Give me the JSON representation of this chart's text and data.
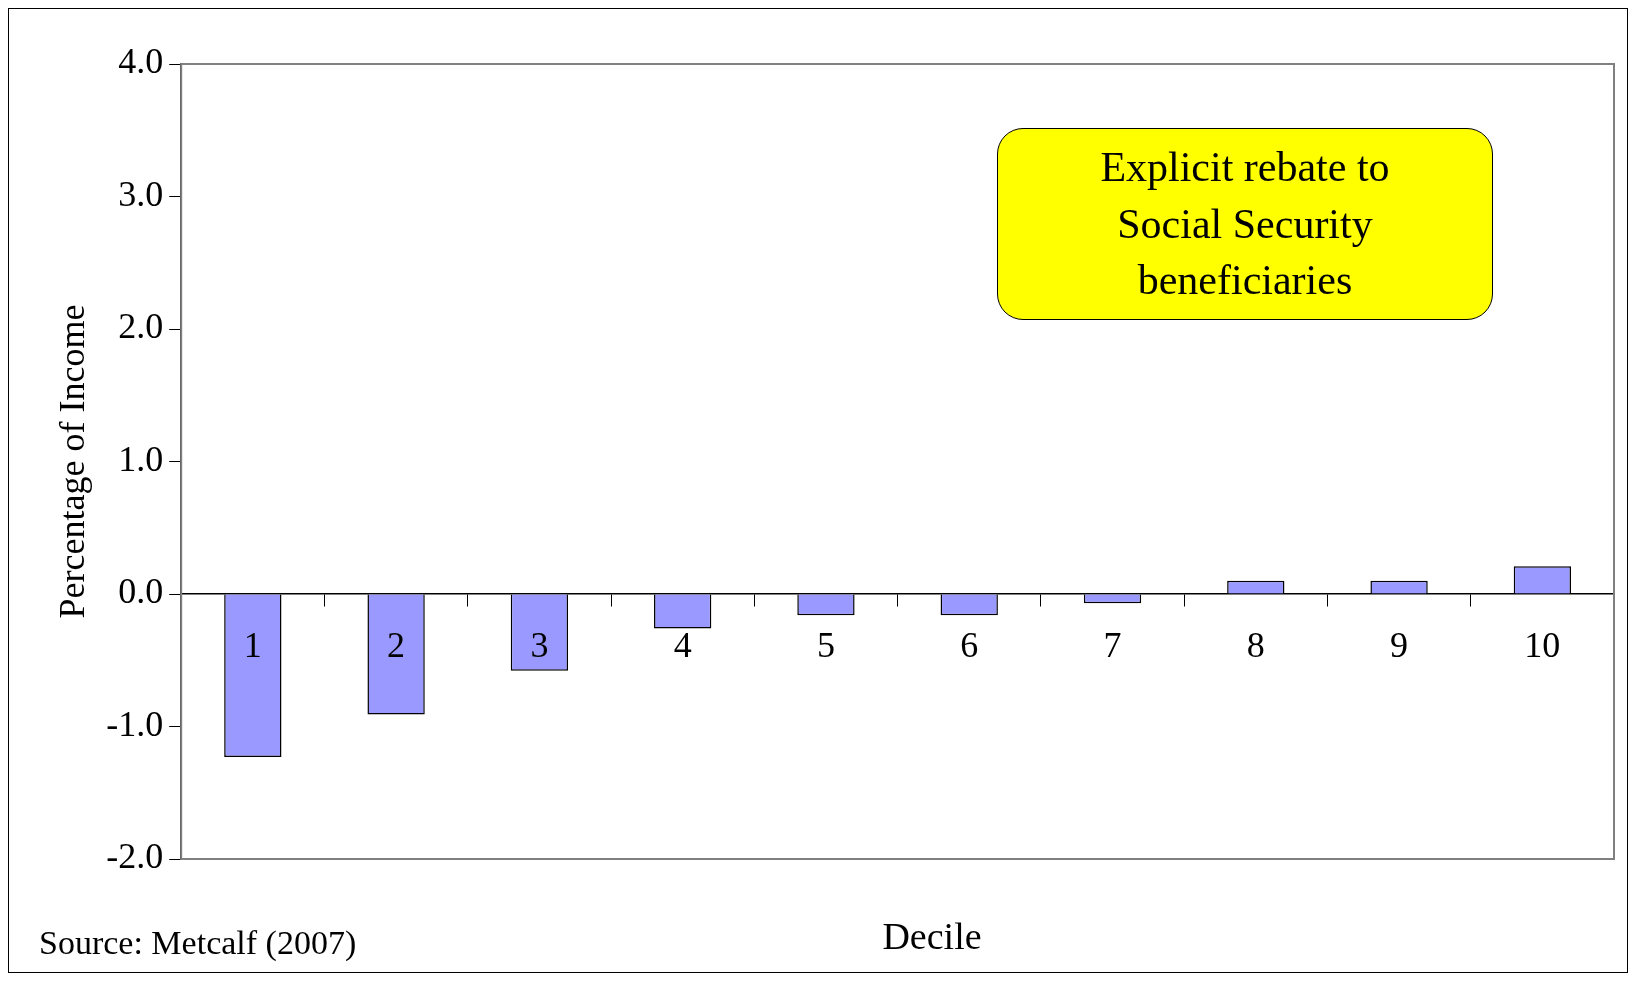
{
  "chart_data": {
    "type": "bar",
    "xlabel": "Decile",
    "ylabel": "Percentage of Income",
    "categories": [
      "1",
      "2",
      "3",
      "4",
      "5",
      "6",
      "7",
      "8",
      "9",
      "10"
    ],
    "values": [
      -1.23,
      -0.91,
      -0.58,
      -0.26,
      -0.16,
      -0.16,
      -0.07,
      0.1,
      0.1,
      0.21
    ],
    "color": "#9999ff",
    "ylim": [
      -2.0,
      4.0
    ],
    "yticks": [
      {
        "value": -2,
        "label": "-2.0"
      },
      {
        "value": -1,
        "label": "-1.0"
      },
      {
        "value": 0,
        "label": "0.0"
      },
      {
        "value": 1,
        "label": "1.0"
      },
      {
        "value": 2,
        "label": "2.0"
      },
      {
        "value": 3,
        "label": "3.0"
      },
      {
        "value": 4,
        "label": "4.0"
      }
    ],
    "grid": false,
    "legend": false,
    "annotations": [
      "Explicit rebate to Social Security beneficiaries",
      "Source: Metcalf (2007)"
    ]
  }
}
